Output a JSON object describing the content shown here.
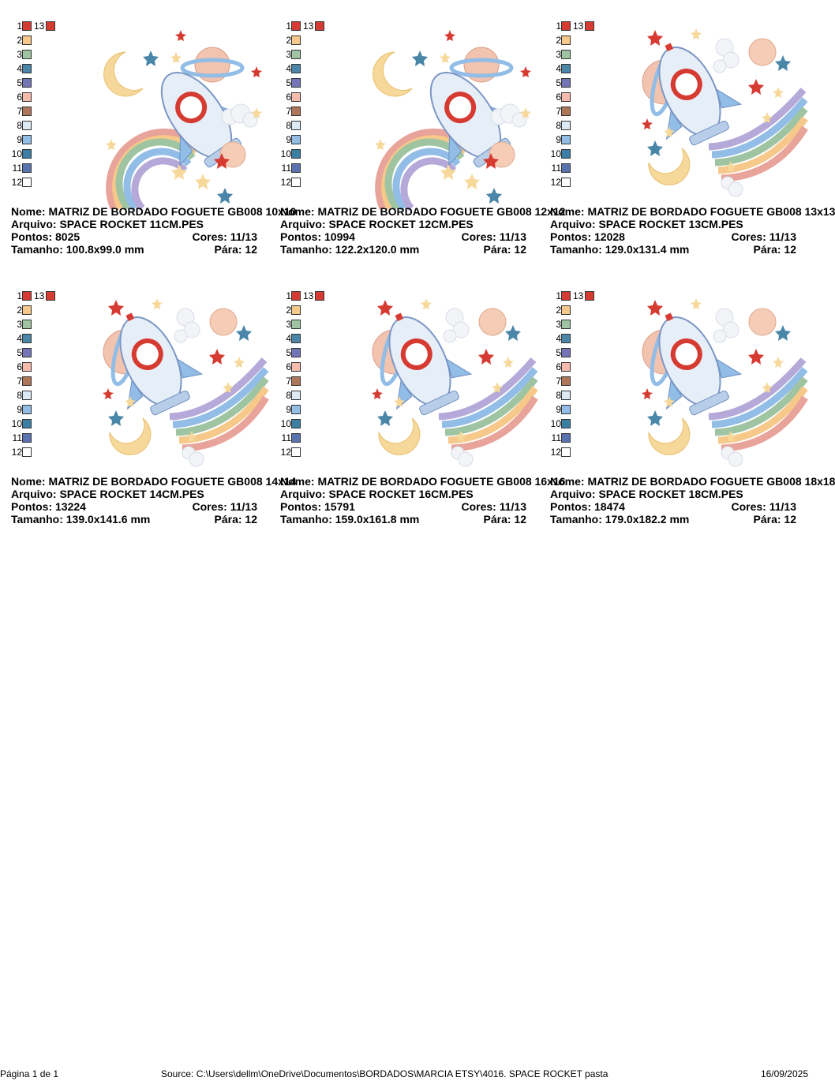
{
  "colors": [
    "#d63b32",
    "#f6c98a",
    "#9fc4a2",
    "#4a86a8",
    "#7474b8",
    "#f5bcae",
    "#b0765a",
    "#dceaf6",
    "#92bde6",
    "#3b7fa6",
    "#5a72b0",
    "#ffffff"
  ],
  "thirteenth_color": "#d63b32",
  "legend_numbers": [
    "1",
    "2",
    "3",
    "4",
    "5",
    "6",
    "7",
    "8",
    "9",
    "10",
    "11",
    "12"
  ],
  "legend_extra": "13",
  "designs": [
    {
      "name": "Nome: MATRIZ DE BORDADO FOGUETE GB008 10x10",
      "file": "Arquivo: SPACE ROCKET 11CM.PES",
      "points": "Pontos: 8025",
      "colors": "Cores: 11/13",
      "size": "Tamanho: 100.8x99.0 mm",
      "stops": "Pára: 12",
      "variant": "a"
    },
    {
      "name": "Nome: MATRIZ DE BORDADO FOGUETE GB008 12x12",
      "file": "Arquivo: SPACE ROCKET 12CM.PES",
      "points": "Pontos: 10994",
      "colors": "Cores: 11/13",
      "size": "Tamanho: 122.2x120.0 mm",
      "stops": "Pára: 12",
      "variant": "a"
    },
    {
      "name": "Nome: MATRIZ DE BORDADO FOGUETE GB008 13x13",
      "file": "Arquivo: SPACE ROCKET 13CM.PES",
      "points": "Pontos: 12028",
      "colors": "Cores: 11/13",
      "size": "Tamanho: 129.0x131.4 mm",
      "stops": "Pára: 12",
      "variant": "b"
    },
    {
      "name": "Nome: MATRIZ DE BORDADO FOGUETE GB008 14x14",
      "file": "Arquivo: SPACE ROCKET 14CM.PES",
      "points": "Pontos: 13224",
      "colors": "Cores: 11/13",
      "size": "Tamanho: 139.0x141.6 mm",
      "stops": "Pára: 12",
      "variant": "b"
    },
    {
      "name": "Nome: MATRIZ DE BORDADO FOGUETE GB008 16x16",
      "file": "Arquivo: SPACE ROCKET 16CM.PES",
      "points": "Pontos: 15791",
      "colors": "Cores: 11/13",
      "size": "Tamanho: 159.0x161.8 mm",
      "stops": "Pára: 12",
      "variant": "b"
    },
    {
      "name": "Nome: MATRIZ DE BORDADO FOGUETE GB008 18x18",
      "file": "Arquivo: SPACE ROCKET 18CM.PES",
      "points": "Pontos: 18474",
      "colors": "Cores: 11/13",
      "size": "Tamanho: 179.0x182.2 mm",
      "stops": "Pára: 12",
      "variant": "b"
    }
  ],
  "footer": {
    "page": "Página 1 de 1",
    "source": "Source: C:\\Users\\dellm\\OneDrive\\Documentos\\BORDADOS\\MARCIA ETSY\\4016. SPACE ROCKET pasta",
    "date": "16/09/2025"
  }
}
